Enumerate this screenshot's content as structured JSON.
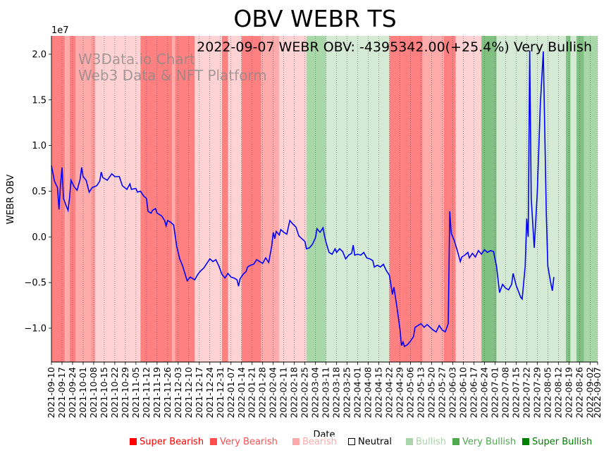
{
  "chart_data": {
    "type": "line",
    "title": "OBV WEBR TS",
    "annotation": "2022-09-07 WEBR OBV: -4395342.00(+25.4%) Very Bullish",
    "watermark_line1": "W3Data.io Chart",
    "watermark_line2": "Web3 Data & NFT Platform",
    "xlabel": "Date",
    "ylabel": "WEBR OBV",
    "y_scale_label": "1e7",
    "y_unit": 10000000,
    "ylim": [
      -13700000,
      22000000
    ],
    "yticks": [
      -10000000,
      -5000000,
      0,
      5000000,
      10000000,
      15000000,
      20000000
    ],
    "ytick_labels": [
      "−1.0",
      "−0.5",
      "0.0",
      "0.5",
      "1.0",
      "1.5",
      "2.0"
    ],
    "xlim": [
      "2021-09-10",
      "2022-09-07"
    ],
    "xtick_labels": [
      "2021-09-10",
      "2021-09-17",
      "2021-09-24",
      "2021-10-01",
      "2021-10-08",
      "2021-10-15",
      "2021-10-22",
      "2021-10-29",
      "2021-11-05",
      "2021-11-12",
      "2021-11-19",
      "2021-11-26",
      "2021-12-03",
      "2021-12-10",
      "2021-12-17",
      "2021-12-24",
      "2021-12-31",
      "2022-01-07",
      "2022-01-14",
      "2022-01-21",
      "2022-01-28",
      "2022-02-04",
      "2022-02-11",
      "2022-02-18",
      "2022-02-25",
      "2022-03-04",
      "2022-03-11",
      "2022-03-18",
      "2022-03-25",
      "2022-04-01",
      "2022-04-08",
      "2022-04-15",
      "2022-04-22",
      "2022-04-29",
      "2022-05-06",
      "2022-05-13",
      "2022-05-20",
      "2022-05-27",
      "2022-06-03",
      "2022-06-10",
      "2022-06-17",
      "2022-06-24",
      "2022-07-01",
      "2022-07-08",
      "2022-07-15",
      "2022-07-22",
      "2022-07-29",
      "2022-08-05",
      "2022-08-12",
      "2022-08-19",
      "2022-08-26",
      "2022-09-02",
      "2022-09-07"
    ],
    "grid": "vertical dotted",
    "line_color": "#0000ff",
    "series": [
      {
        "points": [
          [
            "2021-09-10",
            7800000
          ],
          [
            "2021-09-12",
            6100000
          ],
          [
            "2021-09-14",
            5400000
          ],
          [
            "2021-09-15",
            3000000
          ],
          [
            "2021-09-16",
            5700000
          ],
          [
            "2021-09-17",
            7600000
          ],
          [
            "2021-09-18",
            4200000
          ],
          [
            "2021-09-20",
            3300000
          ],
          [
            "2021-09-21",
            2900000
          ],
          [
            "2021-09-22",
            4300000
          ],
          [
            "2021-09-23",
            6200000
          ],
          [
            "2021-09-25",
            5500000
          ],
          [
            "2021-09-27",
            5100000
          ],
          [
            "2021-09-29",
            6300000
          ],
          [
            "2021-09-30",
            7600000
          ],
          [
            "2021-10-01",
            6600000
          ],
          [
            "2021-10-03",
            6200000
          ],
          [
            "2021-10-05",
            4900000
          ],
          [
            "2021-10-07",
            5400000
          ],
          [
            "2021-10-10",
            5600000
          ],
          [
            "2021-10-12",
            6100000
          ],
          [
            "2021-10-13",
            7100000
          ],
          [
            "2021-10-14",
            6500000
          ],
          [
            "2021-10-17",
            6200000
          ],
          [
            "2021-10-20",
            6900000
          ],
          [
            "2021-10-22",
            6600000
          ],
          [
            "2021-10-25",
            6600000
          ],
          [
            "2021-10-27",
            5600000
          ],
          [
            "2021-10-30",
            5200000
          ],
          [
            "2021-11-01",
            5800000
          ],
          [
            "2021-11-02",
            5200000
          ],
          [
            "2021-11-05",
            5300000
          ],
          [
            "2021-11-06",
            4900000
          ],
          [
            "2021-11-08",
            5000000
          ],
          [
            "2021-11-10",
            4500000
          ],
          [
            "2021-11-12",
            4200000
          ],
          [
            "2021-11-13",
            2800000
          ],
          [
            "2021-11-15",
            2600000
          ],
          [
            "2021-11-16",
            2900000
          ],
          [
            "2021-11-18",
            3100000
          ],
          [
            "2021-11-19",
            2600000
          ],
          [
            "2021-11-22",
            2300000
          ],
          [
            "2021-11-24",
            1800000
          ],
          [
            "2021-11-25",
            1200000
          ],
          [
            "2021-11-26",
            1800000
          ],
          [
            "2021-11-28",
            1600000
          ],
          [
            "2021-11-30",
            1300000
          ],
          [
            "2021-12-02",
            -1000000
          ],
          [
            "2021-12-04",
            -2400000
          ],
          [
            "2021-12-06",
            -3200000
          ],
          [
            "2021-12-08",
            -4300000
          ],
          [
            "2021-12-09",
            -4800000
          ],
          [
            "2021-12-11",
            -4400000
          ],
          [
            "2021-12-14",
            -4700000
          ],
          [
            "2021-12-16",
            -4100000
          ],
          [
            "2021-12-18",
            -3700000
          ],
          [
            "2021-12-20",
            -3400000
          ],
          [
            "2021-12-22",
            -2900000
          ],
          [
            "2021-12-24",
            -2400000
          ],
          [
            "2021-12-26",
            -2700000
          ],
          [
            "2021-12-28",
            -2500000
          ],
          [
            "2021-12-30",
            -3200000
          ],
          [
            "2022-01-01",
            -4100000
          ],
          [
            "2022-01-03",
            -4500000
          ],
          [
            "2022-01-05",
            -4000000
          ],
          [
            "2022-01-07",
            -4400000
          ],
          [
            "2022-01-09",
            -4500000
          ],
          [
            "2022-01-11",
            -4700000
          ],
          [
            "2022-01-12",
            -5400000
          ],
          [
            "2022-01-13",
            -4600000
          ],
          [
            "2022-01-15",
            -4100000
          ],
          [
            "2022-01-17",
            -3800000
          ],
          [
            "2022-01-18",
            -3300000
          ],
          [
            "2022-01-20",
            -3100000
          ],
          [
            "2022-01-22",
            -3000000
          ],
          [
            "2022-01-24",
            -2500000
          ],
          [
            "2022-01-26",
            -2700000
          ],
          [
            "2022-01-28",
            -2900000
          ],
          [
            "2022-01-30",
            -2300000
          ],
          [
            "2022-02-01",
            -2800000
          ],
          [
            "2022-02-03",
            -1000000
          ],
          [
            "2022-02-04",
            500000
          ],
          [
            "2022-02-05",
            -200000
          ],
          [
            "2022-02-06",
            600000
          ],
          [
            "2022-02-08",
            200000
          ],
          [
            "2022-02-09",
            800000
          ],
          [
            "2022-02-11",
            500000
          ],
          [
            "2022-02-13",
            300000
          ],
          [
            "2022-02-15",
            1800000
          ],
          [
            "2022-02-17",
            1400000
          ],
          [
            "2022-02-19",
            1100000
          ],
          [
            "2022-02-21",
            100000
          ],
          [
            "2022-02-23",
            -200000
          ],
          [
            "2022-02-25",
            -500000
          ],
          [
            "2022-02-26",
            -1300000
          ],
          [
            "2022-02-28",
            -1200000
          ],
          [
            "2022-03-02",
            -800000
          ],
          [
            "2022-03-04",
            -100000
          ],
          [
            "2022-03-05",
            900000
          ],
          [
            "2022-03-07",
            500000
          ],
          [
            "2022-03-09",
            1000000
          ],
          [
            "2022-03-10",
            100000
          ],
          [
            "2022-03-11",
            -600000
          ],
          [
            "2022-03-13",
            -1700000
          ],
          [
            "2022-03-15",
            -1900000
          ],
          [
            "2022-03-17",
            -1300000
          ],
          [
            "2022-03-18",
            -1700000
          ],
          [
            "2022-03-20",
            -1300000
          ],
          [
            "2022-03-22",
            -1600000
          ],
          [
            "2022-03-24",
            -2400000
          ],
          [
            "2022-03-26",
            -2000000
          ],
          [
            "2022-03-28",
            -1800000
          ],
          [
            "2022-03-29",
            -900000
          ],
          [
            "2022-03-30",
            -2000000
          ],
          [
            "2022-04-01",
            -1900000
          ],
          [
            "2022-04-03",
            -2000000
          ],
          [
            "2022-04-05",
            -1700000
          ],
          [
            "2022-04-07",
            -2300000
          ],
          [
            "2022-04-09",
            -2400000
          ],
          [
            "2022-04-11",
            -2600000
          ],
          [
            "2022-04-12",
            -3300000
          ],
          [
            "2022-04-14",
            -3100000
          ],
          [
            "2022-04-16",
            -3300000
          ],
          [
            "2022-04-18",
            -3000000
          ],
          [
            "2022-04-20",
            -3700000
          ],
          [
            "2022-04-22",
            -4200000
          ],
          [
            "2022-04-24",
            -6300000
          ],
          [
            "2022-04-25",
            -5500000
          ],
          [
            "2022-04-27",
            -7700000
          ],
          [
            "2022-04-29",
            -10100000
          ],
          [
            "2022-04-30",
            -11900000
          ],
          [
            "2022-05-01",
            -11500000
          ],
          [
            "2022-05-02",
            -12000000
          ],
          [
            "2022-05-04",
            -11800000
          ],
          [
            "2022-05-06",
            -11400000
          ],
          [
            "2022-05-08",
            -10900000
          ],
          [
            "2022-05-09",
            -9900000
          ],
          [
            "2022-05-11",
            -9700000
          ],
          [
            "2022-05-13",
            -9500000
          ],
          [
            "2022-05-15",
            -9900000
          ],
          [
            "2022-05-17",
            -9600000
          ],
          [
            "2022-05-19",
            -9900000
          ],
          [
            "2022-05-21",
            -10200000
          ],
          [
            "2022-05-23",
            -10400000
          ],
          [
            "2022-05-25",
            -9700000
          ],
          [
            "2022-05-27",
            -10200000
          ],
          [
            "2022-05-29",
            -10400000
          ],
          [
            "2022-05-31",
            -9500000
          ],
          [
            "2022-06-01",
            2800000
          ],
          [
            "2022-06-02",
            400000
          ],
          [
            "2022-06-04",
            -400000
          ],
          [
            "2022-06-06",
            -1500000
          ],
          [
            "2022-06-08",
            -2700000
          ],
          [
            "2022-06-09",
            -2200000
          ],
          [
            "2022-06-11",
            -2000000
          ],
          [
            "2022-06-13",
            -1700000
          ],
          [
            "2022-06-14",
            -2300000
          ],
          [
            "2022-06-16",
            -1800000
          ],
          [
            "2022-06-18",
            -2200000
          ],
          [
            "2022-06-20",
            -1500000
          ],
          [
            "2022-06-22",
            -1900000
          ],
          [
            "2022-06-24",
            -1400000
          ],
          [
            "2022-06-26",
            -1700000
          ],
          [
            "2022-06-28",
            -1500000
          ],
          [
            "2022-06-30",
            -1600000
          ],
          [
            "2022-07-02",
            -3200000
          ],
          [
            "2022-07-04",
            -6100000
          ],
          [
            "2022-07-06",
            -5200000
          ],
          [
            "2022-07-08",
            -5600000
          ],
          [
            "2022-07-10",
            -5800000
          ],
          [
            "2022-07-12",
            -5200000
          ],
          [
            "2022-07-13",
            -4000000
          ],
          [
            "2022-07-15",
            -5300000
          ],
          [
            "2022-07-18",
            -6600000
          ],
          [
            "2022-07-19",
            -6800000
          ],
          [
            "2022-07-21",
            -3200000
          ],
          [
            "2022-07-22",
            2000000
          ],
          [
            "2022-07-23",
            0
          ],
          [
            "2022-07-24",
            20400000
          ],
          [
            "2022-07-25",
            4200000
          ],
          [
            "2022-07-27",
            -1200000
          ],
          [
            "2022-07-29",
            4800000
          ],
          [
            "2022-07-31",
            14400000
          ],
          [
            "2022-08-02",
            20300000
          ],
          [
            "2022-08-04",
            2500000
          ],
          [
            "2022-08-05",
            -3200000
          ],
          [
            "2022-08-07",
            -5100000
          ],
          [
            "2022-08-08",
            -5900000
          ],
          [
            "2022-08-09",
            -4400000
          ]
        ]
      }
    ],
    "regions": [
      {
        "start": "2021-09-10",
        "end": "2021-09-19",
        "sentiment": "super_bearish"
      },
      {
        "start": "2021-09-19",
        "end": "2021-09-22",
        "sentiment": "bearish"
      },
      {
        "start": "2021-09-22",
        "end": "2021-09-26",
        "sentiment": "super_bearish"
      },
      {
        "start": "2021-09-26",
        "end": "2021-10-06",
        "sentiment": "bearish"
      },
      {
        "start": "2021-10-06",
        "end": "2021-10-09",
        "sentiment": "very_bearish"
      },
      {
        "start": "2021-10-09",
        "end": "2021-11-08",
        "sentiment": "bearish_light"
      },
      {
        "start": "2021-11-08",
        "end": "2021-11-29",
        "sentiment": "super_bearish"
      },
      {
        "start": "2021-11-29",
        "end": "2021-12-01",
        "sentiment": "bearish"
      },
      {
        "start": "2021-12-01",
        "end": "2021-12-14",
        "sentiment": "super_bearish"
      },
      {
        "start": "2021-12-14",
        "end": "2022-01-01",
        "sentiment": "bearish_light"
      },
      {
        "start": "2022-01-01",
        "end": "2022-01-05",
        "sentiment": "super_bearish"
      },
      {
        "start": "2022-01-05",
        "end": "2022-01-14",
        "sentiment": "bearish_light"
      },
      {
        "start": "2022-01-14",
        "end": "2022-01-27",
        "sentiment": "super_bearish"
      },
      {
        "start": "2022-01-27",
        "end": "2022-02-08",
        "sentiment": "bearish"
      },
      {
        "start": "2022-02-08",
        "end": "2022-02-26",
        "sentiment": "bearish_light"
      },
      {
        "start": "2022-02-26",
        "end": "2022-03-11",
        "sentiment": "very_bullish"
      },
      {
        "start": "2022-03-11",
        "end": "2022-04-22",
        "sentiment": "bullish_light"
      },
      {
        "start": "2022-04-22",
        "end": "2022-04-30",
        "sentiment": "super_bearish"
      },
      {
        "start": "2022-04-30",
        "end": "2022-05-14",
        "sentiment": "super_bearish"
      },
      {
        "start": "2022-05-14",
        "end": "2022-05-28",
        "sentiment": "bearish"
      },
      {
        "start": "2022-05-28",
        "end": "2022-06-05",
        "sentiment": "super_bearish"
      },
      {
        "start": "2022-06-05",
        "end": "2022-06-22",
        "sentiment": "bearish_light"
      },
      {
        "start": "2022-06-22",
        "end": "2022-07-02",
        "sentiment": "super_bullish"
      },
      {
        "start": "2022-07-02",
        "end": "2022-08-17",
        "sentiment": "bullish_light"
      },
      {
        "start": "2022-08-17",
        "end": "2022-08-20",
        "sentiment": "super_bullish"
      },
      {
        "start": "2022-08-20",
        "end": "2022-08-24",
        "sentiment": "bullish_light"
      },
      {
        "start": "2022-08-24",
        "end": "2022-08-29",
        "sentiment": "super_bullish"
      },
      {
        "start": "2022-08-29",
        "end": "2022-09-07",
        "sentiment": "very_bullish"
      }
    ]
  },
  "colors": {
    "super_bearish": "#ff8080",
    "very_bearish": "#ff9a9a",
    "bearish": "#ffabab",
    "bearish_light": "#ffd3d3",
    "bullish_light": "#d4ead4",
    "very_bullish": "#a8d8a8",
    "super_bullish": "#80c080",
    "line": "#0000ff"
  },
  "legend": [
    {
      "label": "Super Bearish",
      "color": "#ff0000",
      "text_color": "#ff0000"
    },
    {
      "label": "Very Bearish",
      "color": "#ff4d4d",
      "text_color": "#ff4d4d"
    },
    {
      "label": "Bearish",
      "color": "#ffaaaa",
      "text_color": "#ffaaaa"
    },
    {
      "label": "Neutral",
      "color": "#ffffff",
      "text_color": "#000000"
    },
    {
      "label": "Bullish",
      "color": "#aad4aa",
      "text_color": "#aad4aa"
    },
    {
      "label": "Very Bullish",
      "color": "#4daa4d",
      "text_color": "#4daa4d"
    },
    {
      "label": "Super Bullish",
      "color": "#008000",
      "text_color": "#008000"
    }
  ]
}
